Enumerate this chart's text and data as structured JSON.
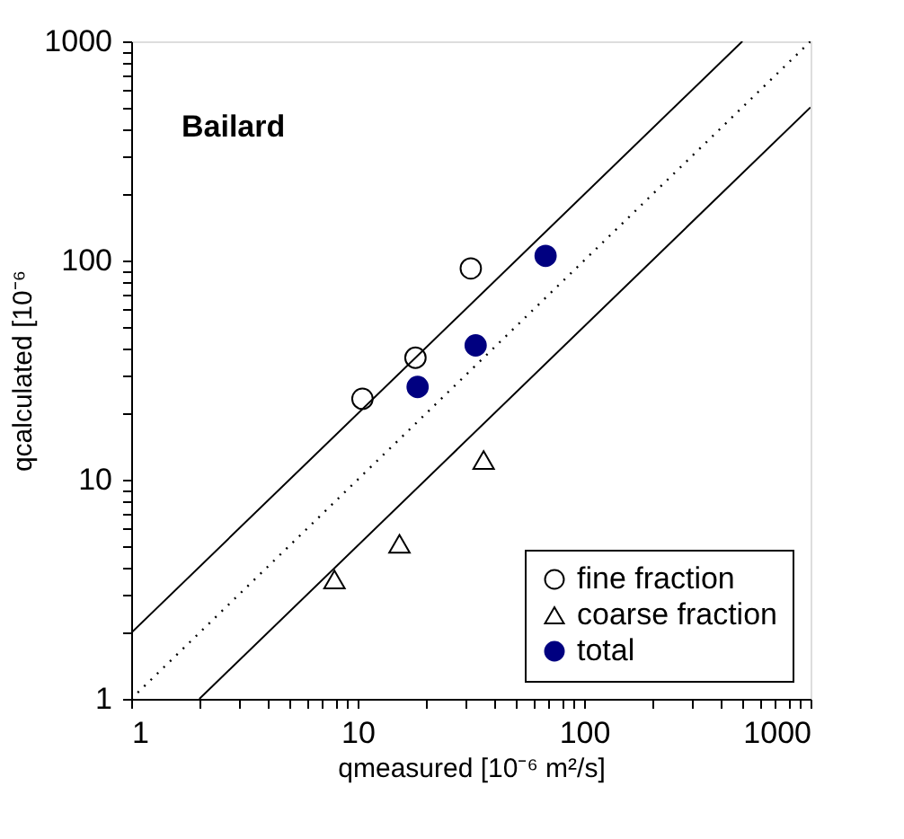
{
  "chart_data": {
    "type": "scatter",
    "xlabel": "qmeasured  [10⁻⁶ m²/s]",
    "ylabel": "qcalculated  [10⁻⁶",
    "annotations": [
      "Bailard"
    ],
    "log": "xy",
    "xlim": [
      1,
      1000
    ],
    "ylim": [
      1,
      1000
    ],
    "xticks": [
      1,
      {
        "value": 2,
        "label": null
      },
      {
        "value": 3,
        "label": null
      },
      {
        "value": 4,
        "label": null
      },
      {
        "value": 5,
        "label": null
      },
      {
        "value": 6,
        "label": null
      },
      {
        "value": 7,
        "label": null
      },
      {
        "value": 8,
        "label": null
      },
      {
        "value": 9,
        "label": null
      },
      10,
      {
        "value": 20,
        "label": null
      },
      {
        "value": 30,
        "label": null
      },
      {
        "value": 40,
        "label": null
      },
      {
        "value": 50,
        "label": null
      },
      {
        "value": 60,
        "label": null
      },
      {
        "value": 70,
        "label": null
      },
      {
        "value": 80,
        "label": null
      },
      {
        "value": 90,
        "label": null
      },
      100,
      {
        "value": 200,
        "label": null
      },
      {
        "value": 300,
        "label": null
      },
      {
        "value": 400,
        "label": null
      },
      {
        "value": 500,
        "label": null
      },
      {
        "value": 600,
        "label": null
      },
      {
        "value": 700,
        "label": null
      },
      {
        "value": 800,
        "label": null
      },
      {
        "value": 900,
        "label": null
      },
      1000
    ],
    "yticks": [
      1,
      {
        "value": 2,
        "label": null
      },
      {
        "value": 3,
        "label": null
      },
      {
        "value": 4,
        "label": null
      },
      {
        "value": 5,
        "label": null
      },
      {
        "value": 6,
        "label": null
      },
      {
        "value": 7,
        "label": null
      },
      {
        "value": 8,
        "label": null
      },
      {
        "value": 9,
        "label": null
      },
      10,
      {
        "value": 20,
        "label": null
      },
      {
        "value": 30,
        "label": null
      },
      {
        "value": 40,
        "label": null
      },
      {
        "value": 50,
        "label": null
      },
      {
        "value": 60,
        "label": null
      },
      {
        "value": 70,
        "label": null
      },
      {
        "value": 80,
        "label": null
      },
      {
        "value": 90,
        "label": null
      },
      100,
      {
        "value": 200,
        "label": null
      },
      {
        "value": 300,
        "label": null
      },
      {
        "value": 400,
        "label": null
      },
      {
        "value": 500,
        "label": null
      },
      {
        "value": 600,
        "label": null
      },
      {
        "value": 700,
        "label": null
      },
      {
        "value": 800,
        "label": null
      },
      {
        "value": 900,
        "label": null
      },
      1000
    ],
    "grid": false,
    "legend": "bottom right",
    "series": [
      {
        "type": "line",
        "x": [
          1,
          500
        ],
        "values": [
          2,
          1000
        ],
        "color": "#000000",
        "line_style": "solid"
      },
      {
        "type": "line",
        "x": [
          1,
          1000
        ],
        "values": [
          1,
          1000
        ],
        "color": "#000000",
        "line_style": "dotted"
      },
      {
        "type": "line",
        "x": [
          2,
          1000
        ],
        "values": [
          1,
          500
        ],
        "color": "#000000",
        "line_style": "solid"
      },
      {
        "name": "fine fraction",
        "marker": "circle",
        "color": "#000000",
        "x": [
          10.5,
          18,
          31.6
        ],
        "values": [
          23.4,
          36,
          92
        ]
      },
      {
        "name": "coarse fraction",
        "marker": "triangle",
        "color": "#000000",
        "x": [
          7.9,
          15.3,
          36
        ],
        "values": [
          3.5,
          5.1,
          12.3
        ]
      },
      {
        "name": "total",
        "marker": "circle",
        "color": "#000080",
        "x": [
          18.4,
          33.2,
          67.6
        ],
        "values": [
          26.5,
          41,
          105
        ]
      }
    ]
  }
}
